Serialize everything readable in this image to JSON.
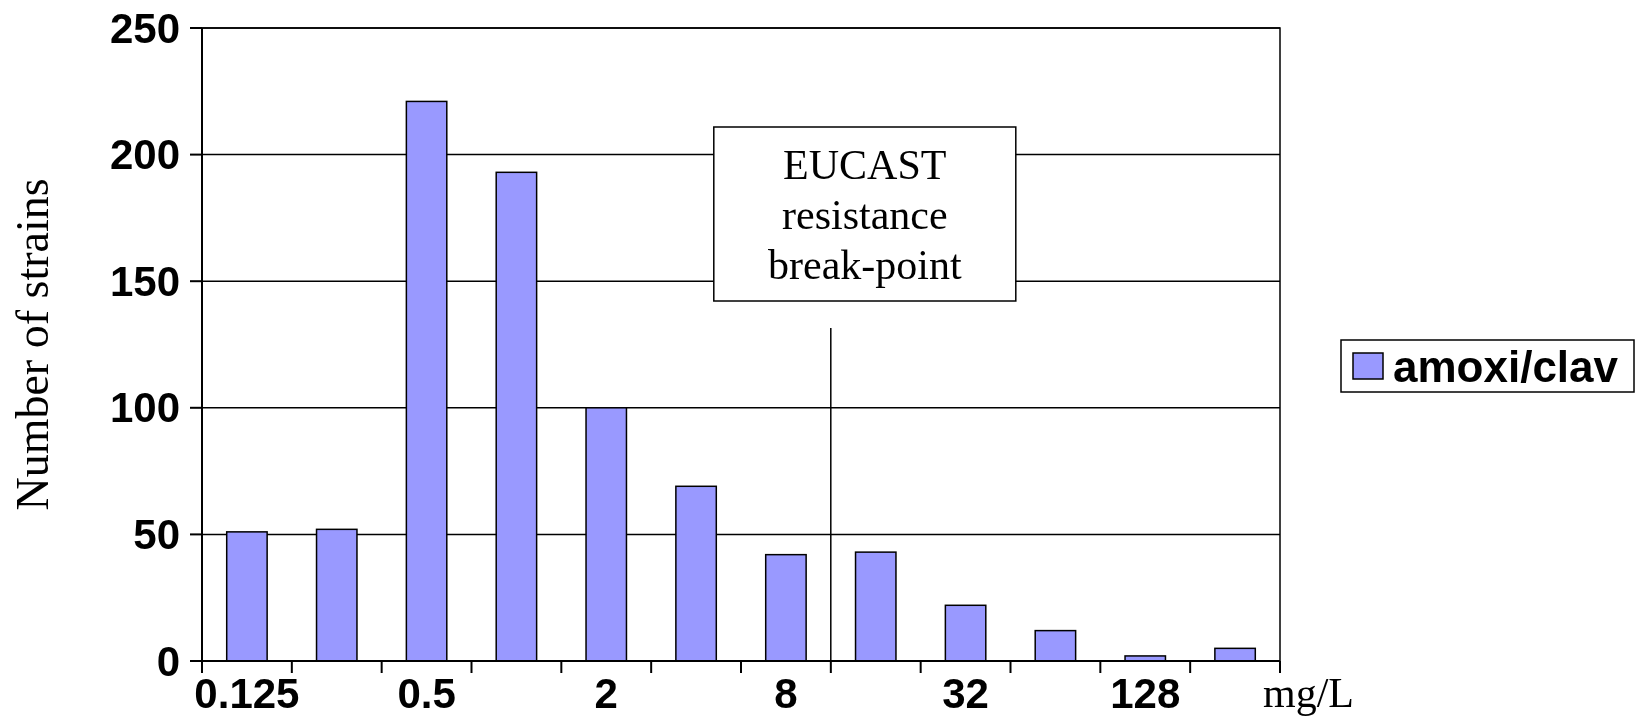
{
  "chart_data": {
    "type": "bar",
    "xlabel": "mg/L",
    "ylabel": "Number of strains",
    "categories": [
      "0.125",
      null,
      "0.5",
      null,
      "2",
      null,
      "8",
      null,
      "32",
      null,
      "128",
      null
    ],
    "series": [
      {
        "name": "amoxi/clav",
        "color": "#9999ff",
        "values": [
          51,
          52,
          221,
          193,
          100,
          69,
          42,
          43,
          22,
          12,
          2,
          5
        ]
      }
    ],
    "ylim": [
      0,
      250
    ],
    "yticks": [
      0,
      50,
      100,
      150,
      200,
      250
    ],
    "grid": "y",
    "legend": "right",
    "annotations": [
      "EUCAST resistance break-point"
    ]
  }
}
